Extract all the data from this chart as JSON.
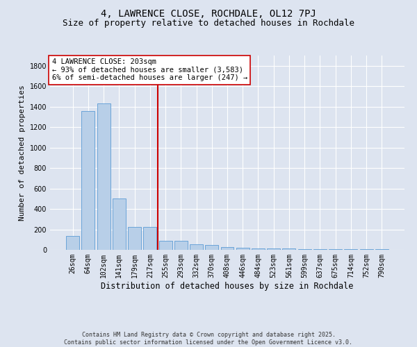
{
  "title_line1": "4, LAWRENCE CLOSE, ROCHDALE, OL12 7PJ",
  "title_line2": "Size of property relative to detached houses in Rochdale",
  "xlabel": "Distribution of detached houses by size in Rochdale",
  "ylabel": "Number of detached properties",
  "bar_labels": [
    "26sqm",
    "64sqm",
    "102sqm",
    "141sqm",
    "179sqm",
    "217sqm",
    "255sqm",
    "293sqm",
    "332sqm",
    "370sqm",
    "408sqm",
    "446sqm",
    "484sqm",
    "523sqm",
    "561sqm",
    "599sqm",
    "637sqm",
    "675sqm",
    "714sqm",
    "752sqm",
    "790sqm"
  ],
  "bar_values": [
    135,
    1360,
    1430,
    500,
    225,
    225,
    85,
    85,
    55,
    50,
    27,
    20,
    15,
    15,
    12,
    10,
    8,
    6,
    5,
    4,
    10
  ],
  "bar_color": "#b8cfe8",
  "bar_edge_color": "#5b9bd5",
  "background_color": "#dde4f0",
  "grid_color": "#ffffff",
  "vline_x": 5.5,
  "vline_color": "#cc0000",
  "annotation_text": "4 LAWRENCE CLOSE: 203sqm\n← 93% of detached houses are smaller (3,583)\n6% of semi-detached houses are larger (247) →",
  "annotation_box_color": "#ffffff",
  "annotation_box_edge": "#cc0000",
  "ylim": [
    0,
    1900
  ],
  "yticks": [
    0,
    200,
    400,
    600,
    800,
    1000,
    1200,
    1400,
    1600,
    1800
  ],
  "copyright_text": "Contains HM Land Registry data © Crown copyright and database right 2025.\nContains public sector information licensed under the Open Government Licence v3.0.",
  "title_fontsize": 10,
  "subtitle_fontsize": 9,
  "ylabel_fontsize": 8,
  "xlabel_fontsize": 8.5,
  "tick_fontsize": 7,
  "annotation_fontsize": 7.5,
  "copyright_fontsize": 6
}
